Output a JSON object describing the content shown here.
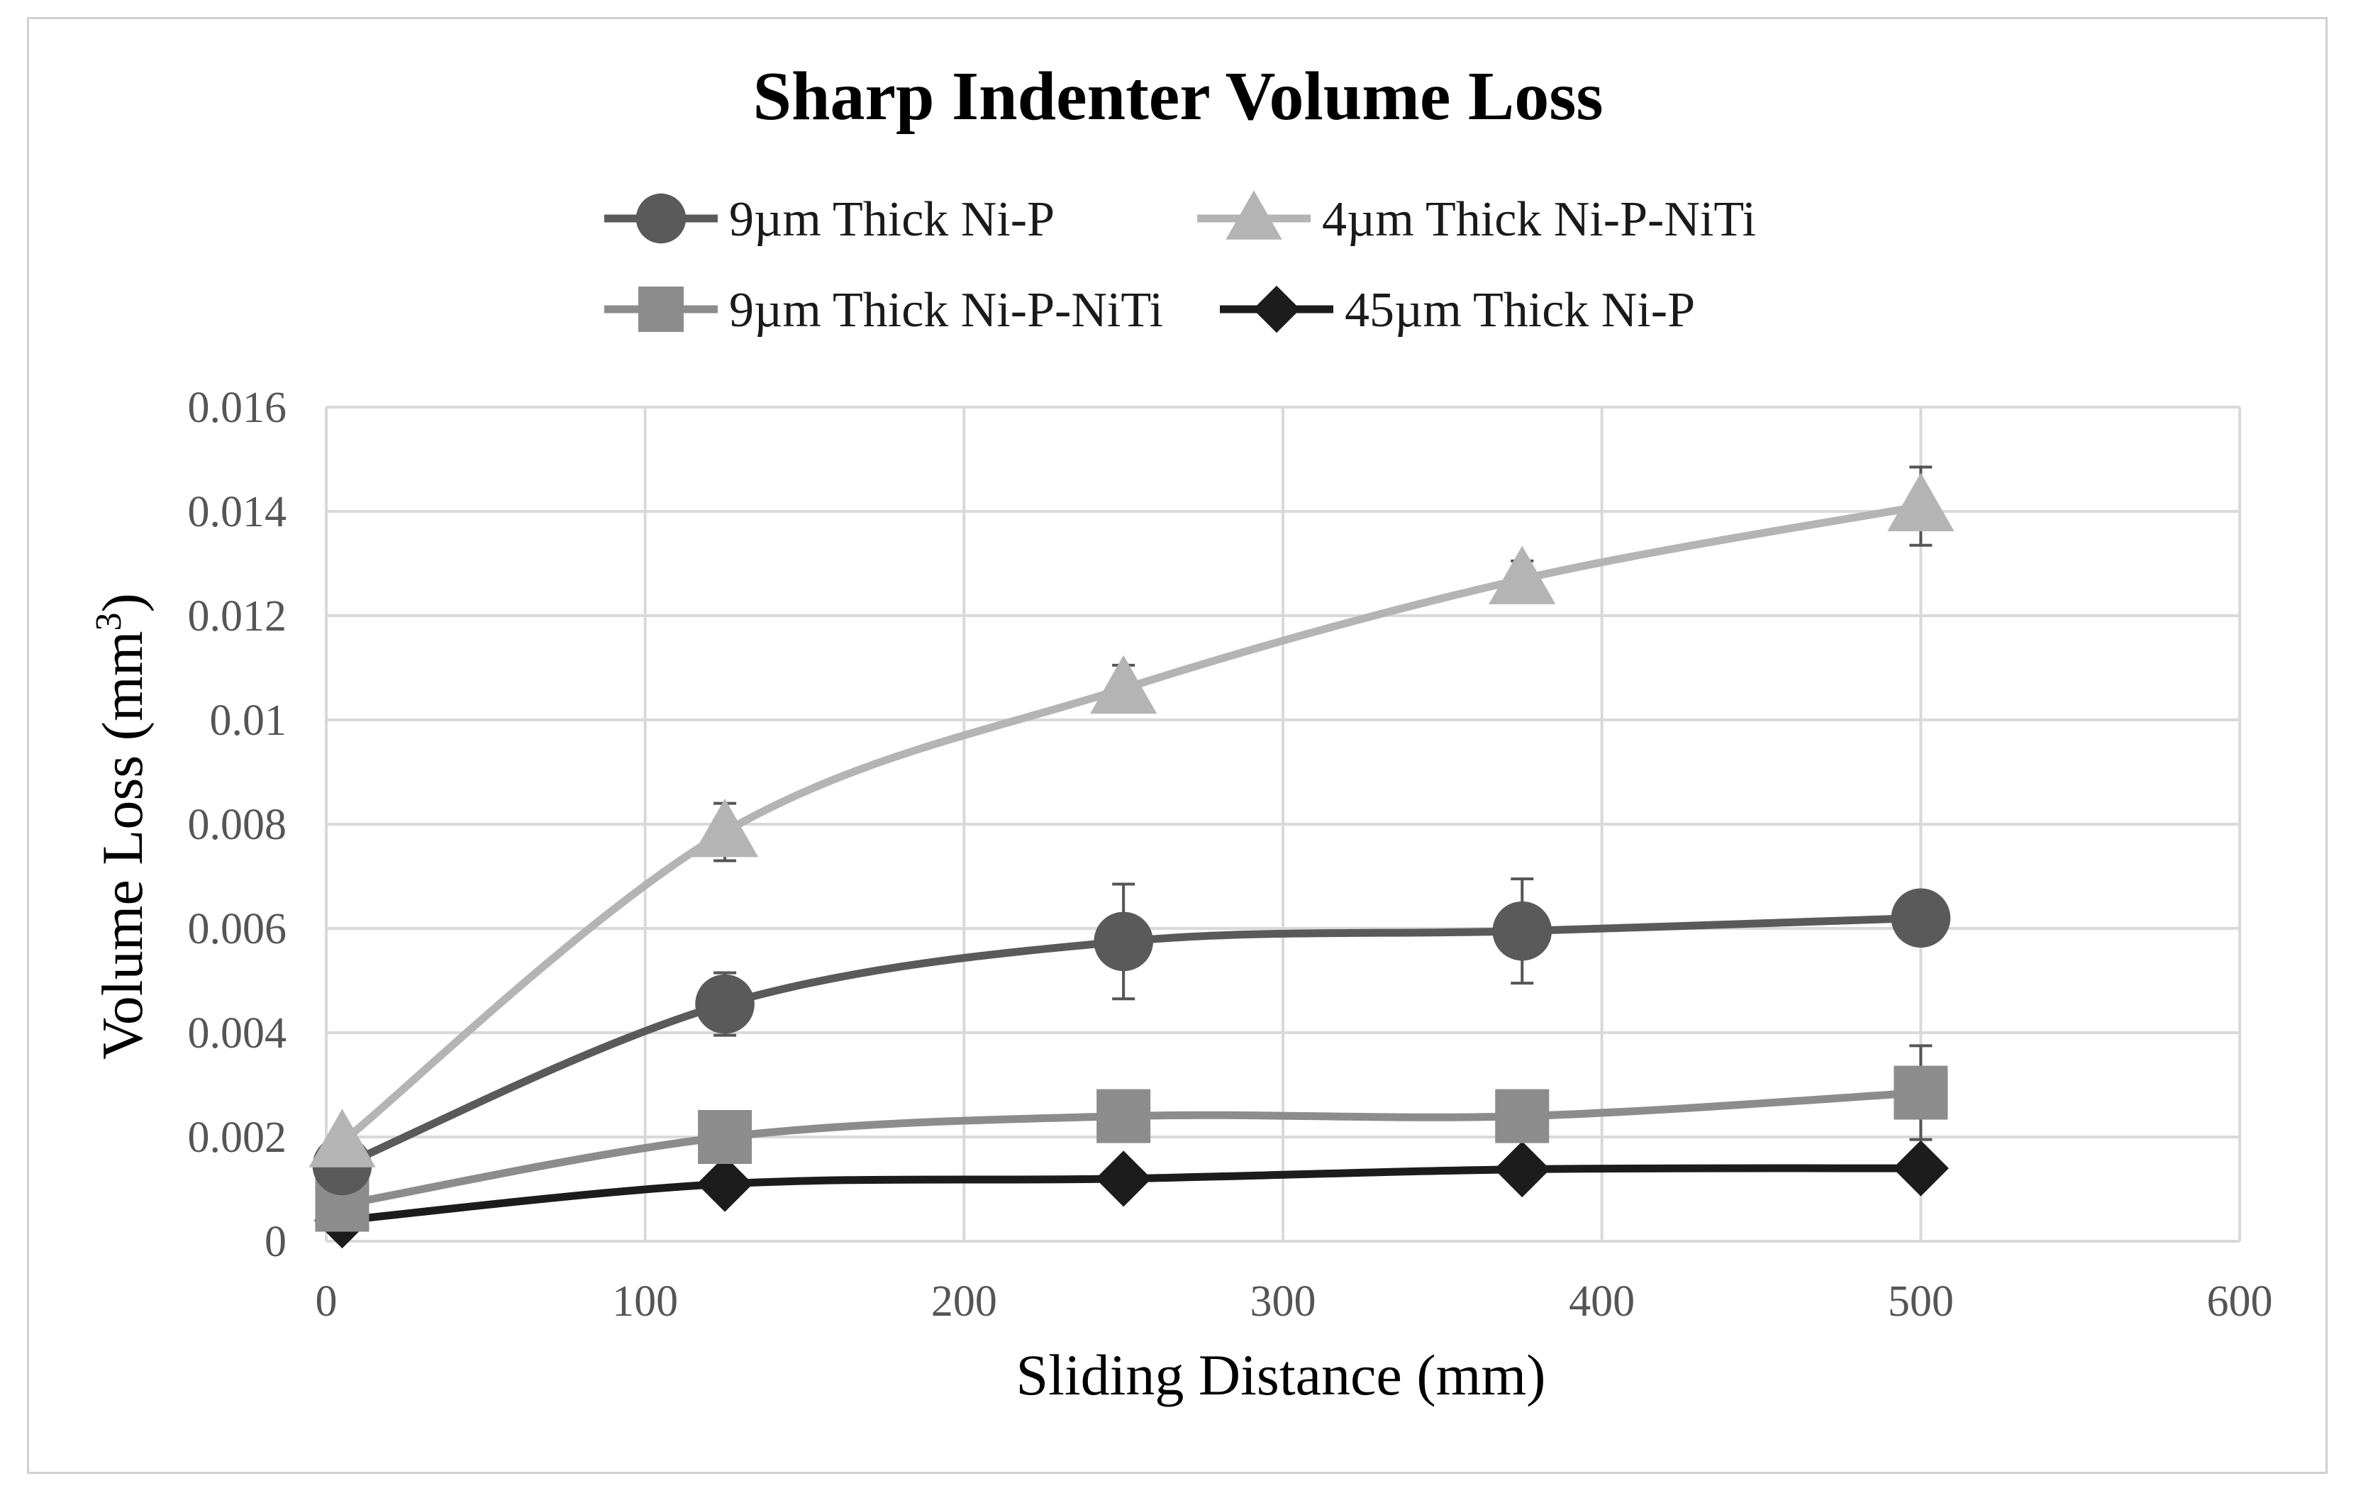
{
  "chart_data": {
    "type": "line",
    "title": "Sharp Indenter Volume Loss",
    "xlabel": "Sliding Distance (mm)",
    "ylabel": "Volume Loss (mm",
    "ylabel_superscript": "3",
    "ylabel_suffix": ")",
    "xlim": [
      0,
      600
    ],
    "ylim": [
      0,
      0.016
    ],
    "x_ticks": [
      0,
      100,
      200,
      300,
      400,
      500,
      600
    ],
    "x_tick_labels": [
      "0",
      "100",
      "200",
      "300",
      "400",
      "500",
      "600"
    ],
    "y_ticks": [
      0,
      0.002,
      0.004,
      0.006,
      0.008,
      0.01,
      0.012,
      0.014,
      0.016
    ],
    "y_tick_labels": [
      "0",
      "0.002",
      "0.004",
      "0.006",
      "0.008",
      "0.01",
      "0.012",
      "0.014",
      "0.016"
    ],
    "grid": true,
    "legend_position": "top",
    "x": [
      5,
      125,
      250,
      375,
      500
    ],
    "series": [
      {
        "name": "9µm Thick Ni-P",
        "marker": "circle",
        "color": "#5a5a5a",
        "values": [
          0.00145,
          0.00455,
          0.00575,
          0.00595,
          0.0062
        ],
        "error": [
          0.0004,
          0.0006,
          0.0011,
          0.001,
          0.0004
        ]
      },
      {
        "name": "4µm Thick Ni-P-NiTi",
        "marker": "triangle",
        "color": "#b4b4b4",
        "values": [
          0.0019,
          0.00785,
          0.0106,
          0.0127,
          0.0141
        ],
        "error": [
          0.0002,
          0.00055,
          0.00045,
          0.00035,
          0.00075
        ]
      },
      {
        "name": "9µm Thick Ni-P-NiTi",
        "marker": "square",
        "color": "#8c8c8c",
        "values": [
          0.0007,
          0.002,
          0.0024,
          0.0024,
          0.00285
        ],
        "error": [
          0,
          0,
          0,
          0,
          0.0009
        ]
      },
      {
        "name": "45µm Thick Ni-P",
        "marker": "diamond",
        "color": "#1c1c1c",
        "values": [
          0.0004,
          0.0011,
          0.0012,
          0.00138,
          0.0014
        ],
        "error": [
          0,
          0,
          0,
          0,
          0
        ]
      }
    ]
  }
}
